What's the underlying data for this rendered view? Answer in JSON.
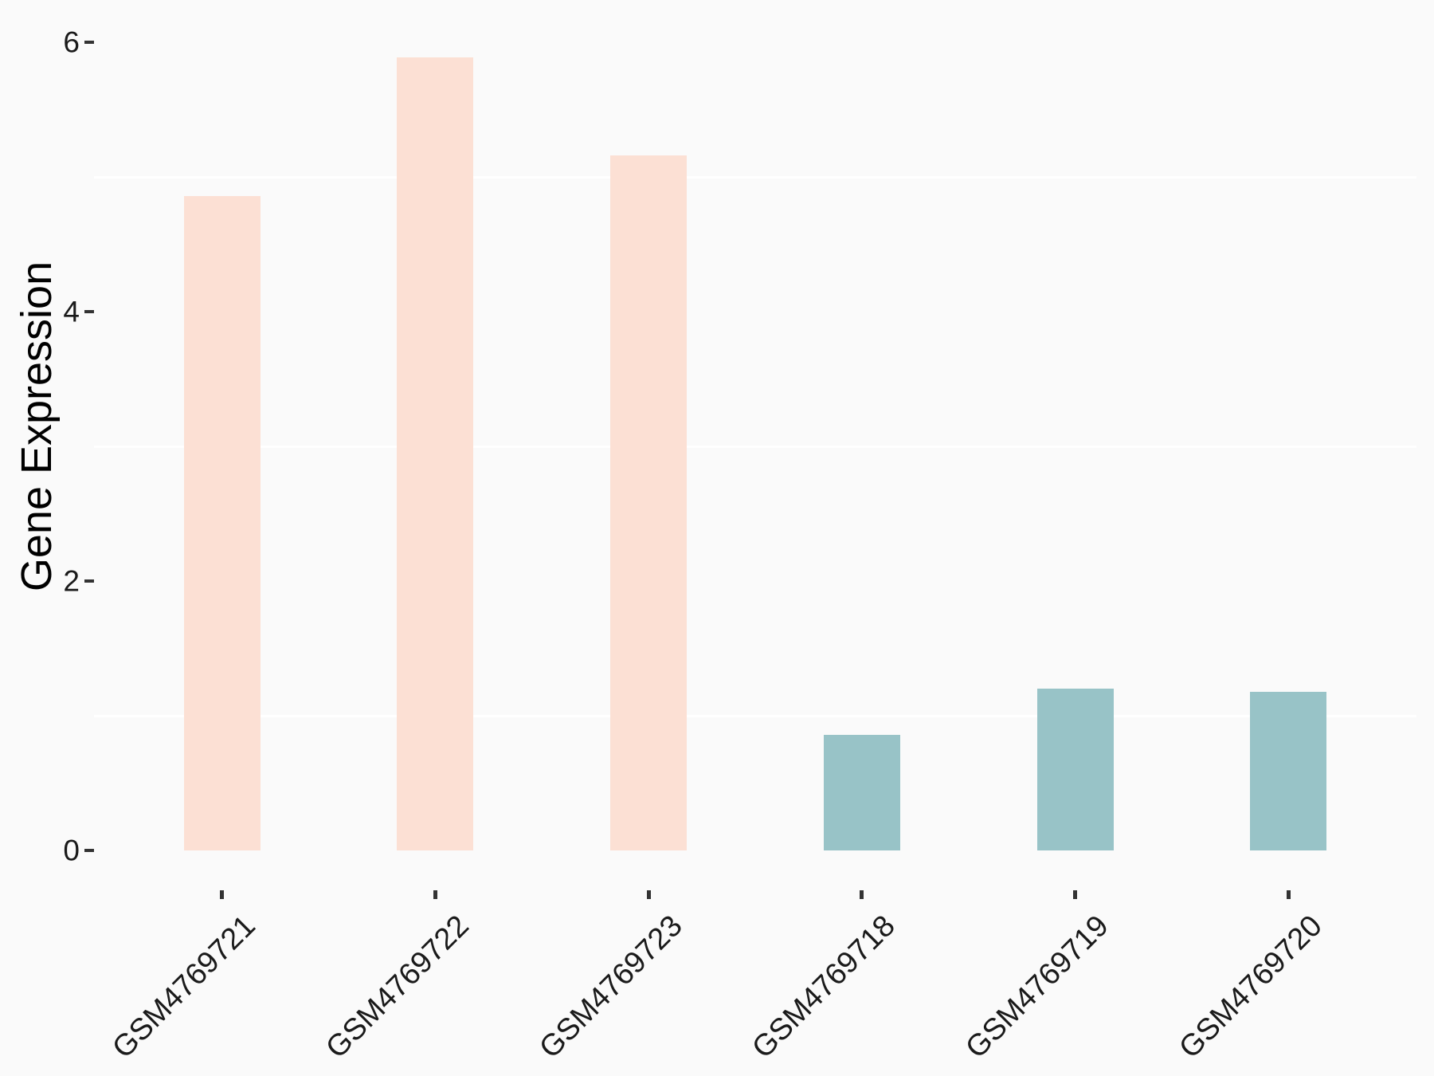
{
  "colors": {
    "background": "#fafafa",
    "gridline": "#ffffff",
    "tick_mark": "#333333",
    "tick_text": "#1a1a1a",
    "axis_title_text": "#000000",
    "bar_pink": "#fce0d4",
    "bar_teal": "#98c3c7"
  },
  "chart_data": {
    "type": "bar",
    "title": "",
    "xlabel": "",
    "ylabel": "Gene Expression",
    "categories": [
      "GSM4769721",
      "GSM4769722",
      "GSM4769723",
      "GSM4769718",
      "GSM4769719",
      "GSM4769720"
    ],
    "values": [
      4.86,
      5.89,
      5.16,
      0.86,
      1.2,
      1.18
    ],
    "bar_colors": [
      "#fce0d4",
      "#fce0d4",
      "#fce0d4",
      "#98c3c7",
      "#98c3c7",
      "#98c3c7"
    ],
    "ylim": [
      0,
      6.2
    ],
    "yticks": [
      0,
      2,
      4,
      6
    ],
    "ytick_labels": [
      "0",
      "2",
      "4",
      "6"
    ],
    "minor_gridlines": [
      1,
      3,
      5
    ],
    "grid": "minor-only-white",
    "legend": "none",
    "x_label_rotation_deg": 45
  }
}
